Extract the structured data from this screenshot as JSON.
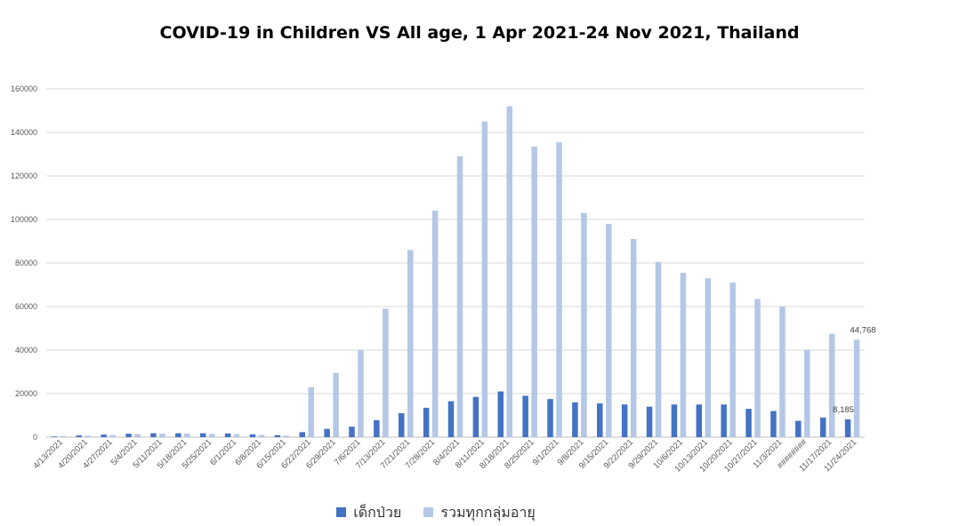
{
  "chart_data": {
    "type": "bar",
    "title": "COVID-19 in Children VS All age, 1 Apr 2021-24 Nov 2021, Thailand",
    "categories": [
      "4/13/2021",
      "4/20/2021",
      "4/27/2021",
      "5/4/2021",
      "5/11/2021",
      "5/18/2021",
      "5/25/2021",
      "6/1/2021",
      "6/8/2021",
      "6/15/2021",
      "6/22/2021",
      "6/29/2021",
      "7/6/2021",
      "7/13/2021",
      "7/21/2021",
      "7/28/2021",
      "8/4/2021",
      "8/11/2021",
      "8/18/2021",
      "8/25/2021",
      "9/1/2021",
      "9/8/2021",
      "9/15/2021",
      "9/22/2021",
      "9/29/2021",
      "10/6/2021",
      "10/13/2021",
      "10/20/2021",
      "10/27/2021",
      "11/3/2021",
      "########",
      "11/17/2021",
      "11/24/2021"
    ],
    "series": [
      {
        "name": "เด็กป่วย",
        "color": "#4472c4",
        "values": [
          300,
          800,
          1200,
          1600,
          1800,
          1800,
          1800,
          1700,
          1300,
          900,
          2300,
          3800,
          4800,
          7800,
          11000,
          13500,
          16500,
          18500,
          21000,
          19000,
          17500,
          16000,
          15500,
          15000,
          14000,
          15000,
          15000,
          15000,
          13000,
          12000,
          7500,
          9000,
          8185
        ]
      },
      {
        "name": "รวมทุกกลุ่มอายุ",
        "color": "#b4c7e7",
        "values": [
          500,
          700,
          1000,
          1400,
          1600,
          1600,
          1500,
          1400,
          1000,
          700,
          23000,
          29500,
          40000,
          59000,
          86000,
          104000,
          129000,
          145000,
          152000,
          133500,
          135500,
          103000,
          98000,
          91000,
          80500,
          75500,
          73000,
          71000,
          63500,
          60000,
          40000,
          47500,
          44768
        ]
      }
    ],
    "ylim": [
      0,
      160000
    ],
    "yticks": [
      0,
      20000,
      40000,
      60000,
      80000,
      100000,
      120000,
      140000,
      160000
    ],
    "data_labels": [
      {
        "series": 0,
        "index": 32,
        "text": "8,185"
      },
      {
        "series": 1,
        "index": 32,
        "text": "44,768"
      }
    ],
    "grid": true,
    "legend": "bottom"
  }
}
